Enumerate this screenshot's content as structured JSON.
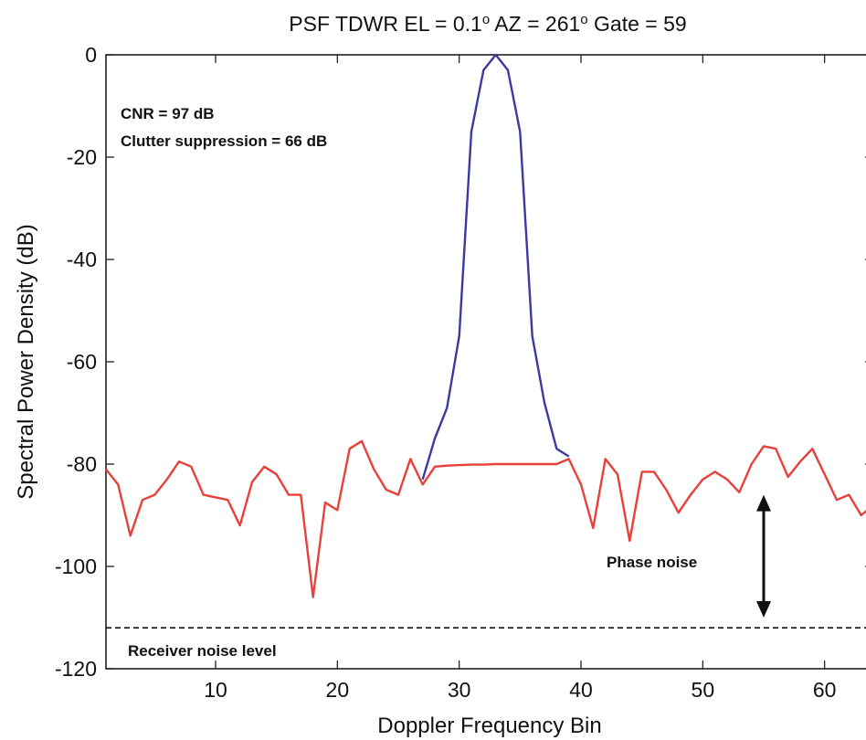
{
  "chart_data": {
    "type": "line",
    "title": {
      "main": "PSF TDWR  EL = 0.1",
      "el_sup": "o",
      "az": "  AZ = 261",
      "az_sup": "o",
      "gate": "  Gate = 59"
    },
    "xlabel": "Doppler Frequency Bin",
    "ylabel": "Spectral Power Density (dB)",
    "xlim": [
      1,
      64
    ],
    "ylim": [
      -120,
      0
    ],
    "xticks": [
      10,
      20,
      30,
      40,
      50,
      60
    ],
    "yticks": [
      0,
      -20,
      -40,
      -60,
      -80,
      -100,
      -120
    ],
    "grid": false,
    "series": [
      {
        "color": "#e8403a",
        "x": [
          1,
          2,
          3,
          4,
          5,
          6,
          7,
          8,
          9,
          10,
          11,
          12,
          13,
          14,
          15,
          16,
          17,
          18,
          19,
          20,
          21,
          22,
          23,
          24,
          25,
          26,
          27,
          28,
          29,
          30,
          31,
          32,
          33,
          34,
          35,
          36,
          37,
          38,
          39,
          40,
          41,
          42,
          43,
          44,
          45,
          46,
          47,
          48,
          49,
          50,
          51,
          52,
          53,
          54,
          55,
          56,
          57,
          58,
          59,
          60,
          61,
          62,
          63,
          64
        ],
        "y": [
          -81,
          -84,
          -94,
          -87,
          -86,
          -83,
          -79.5,
          -80.5,
          -86,
          -86.5,
          -87,
          -92,
          -83.5,
          -80.5,
          -82,
          -86,
          -86,
          -106,
          -87.5,
          -89,
          -77,
          -75.5,
          -81,
          -85,
          -86,
          -79,
          -84,
          -80.5,
          -80.3,
          -80.2,
          -80.1,
          -80.1,
          -80,
          -80,
          -80,
          -80,
          -80,
          -80,
          -79,
          -84,
          -92.5,
          -79,
          -82,
          -95,
          -81.5,
          -81.5,
          -85,
          -89.5,
          -86,
          -83,
          -81.5,
          -83,
          -85.5,
          -80,
          -76.5,
          -77,
          -82.5,
          -79.5,
          -77,
          -82,
          -87,
          -86,
          -90,
          -88
        ]
      },
      {
        "color": "#3a3aa0",
        "x": [
          27,
          28,
          29,
          30,
          31,
          32,
          33,
          34,
          35,
          36,
          37,
          38,
          39
        ],
        "y": [
          -83,
          -75,
          -69,
          -55,
          -15,
          -3,
          0,
          -3,
          -15,
          -55,
          -68,
          -77,
          -78.5
        ]
      }
    ],
    "reference_lines": [
      {
        "y": -112,
        "style": "dashed",
        "color": "#111111",
        "label": "Receiver noise level"
      }
    ],
    "annotations": {
      "cnr": "CNR = 97 dB",
      "clutter": "Clutter suppression = 66 dB",
      "phase_noise": "Phase noise",
      "arrow_x": 55,
      "arrow_from_y": -86,
      "arrow_to_y": -110
    }
  }
}
